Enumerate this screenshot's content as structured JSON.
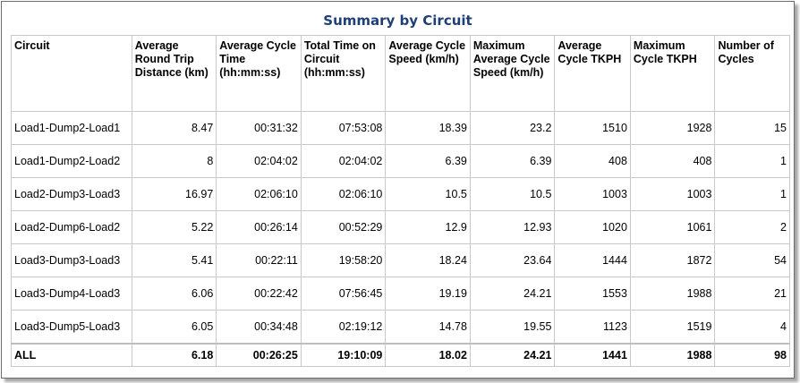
{
  "title": "Summary by Circuit",
  "columns": [
    "Circuit",
    "Average Round Trip Distance (km)",
    "Average Cycle Time (hh:mm:ss)",
    "Total Time on Circuit (hh:mm:ss)",
    "Average Cycle Speed (km/h)",
    "Maximum Average Cycle Speed (km/h)",
    "Average Cycle TKPH",
    "Maximum Cycle TKPH",
    "Number of Cycles"
  ],
  "rows": [
    [
      "Load1-Dump2-Load1",
      "8.47",
      "00:31:32",
      "07:53:08",
      "18.39",
      "23.2",
      "1510",
      "1928",
      "15"
    ],
    [
      "Load1-Dump2-Load2",
      "8",
      "02:04:02",
      "02:04:02",
      "6.39",
      "6.39",
      "408",
      "408",
      "1"
    ],
    [
      "Load2-Dump3-Load3",
      "16.97",
      "02:06:10",
      "02:06:10",
      "10.5",
      "10.5",
      "1003",
      "1003",
      "1"
    ],
    [
      "Load2-Dump6-Load2",
      "5.22",
      "00:26:14",
      "00:52:29",
      "12.9",
      "12.93",
      "1020",
      "1061",
      "2"
    ],
    [
      "Load3-Dump3-Load3",
      "5.41",
      "00:22:11",
      "19:58:20",
      "18.24",
      "23.64",
      "1444",
      "1872",
      "54"
    ],
    [
      "Load3-Dump4-Load3",
      "6.06",
      "00:22:42",
      "07:56:45",
      "19.19",
      "24.21",
      "1553",
      "1988",
      "21"
    ],
    [
      "Load3-Dump5-Load3",
      "6.05",
      "00:34:48",
      "02:19:12",
      "14.78",
      "19.55",
      "1123",
      "1519",
      "4"
    ]
  ],
  "total": [
    "ALL",
    "6.18",
    "00:26:25",
    "19:10:09",
    "18.02",
    "24.21",
    "1441",
    "1988",
    "98"
  ]
}
